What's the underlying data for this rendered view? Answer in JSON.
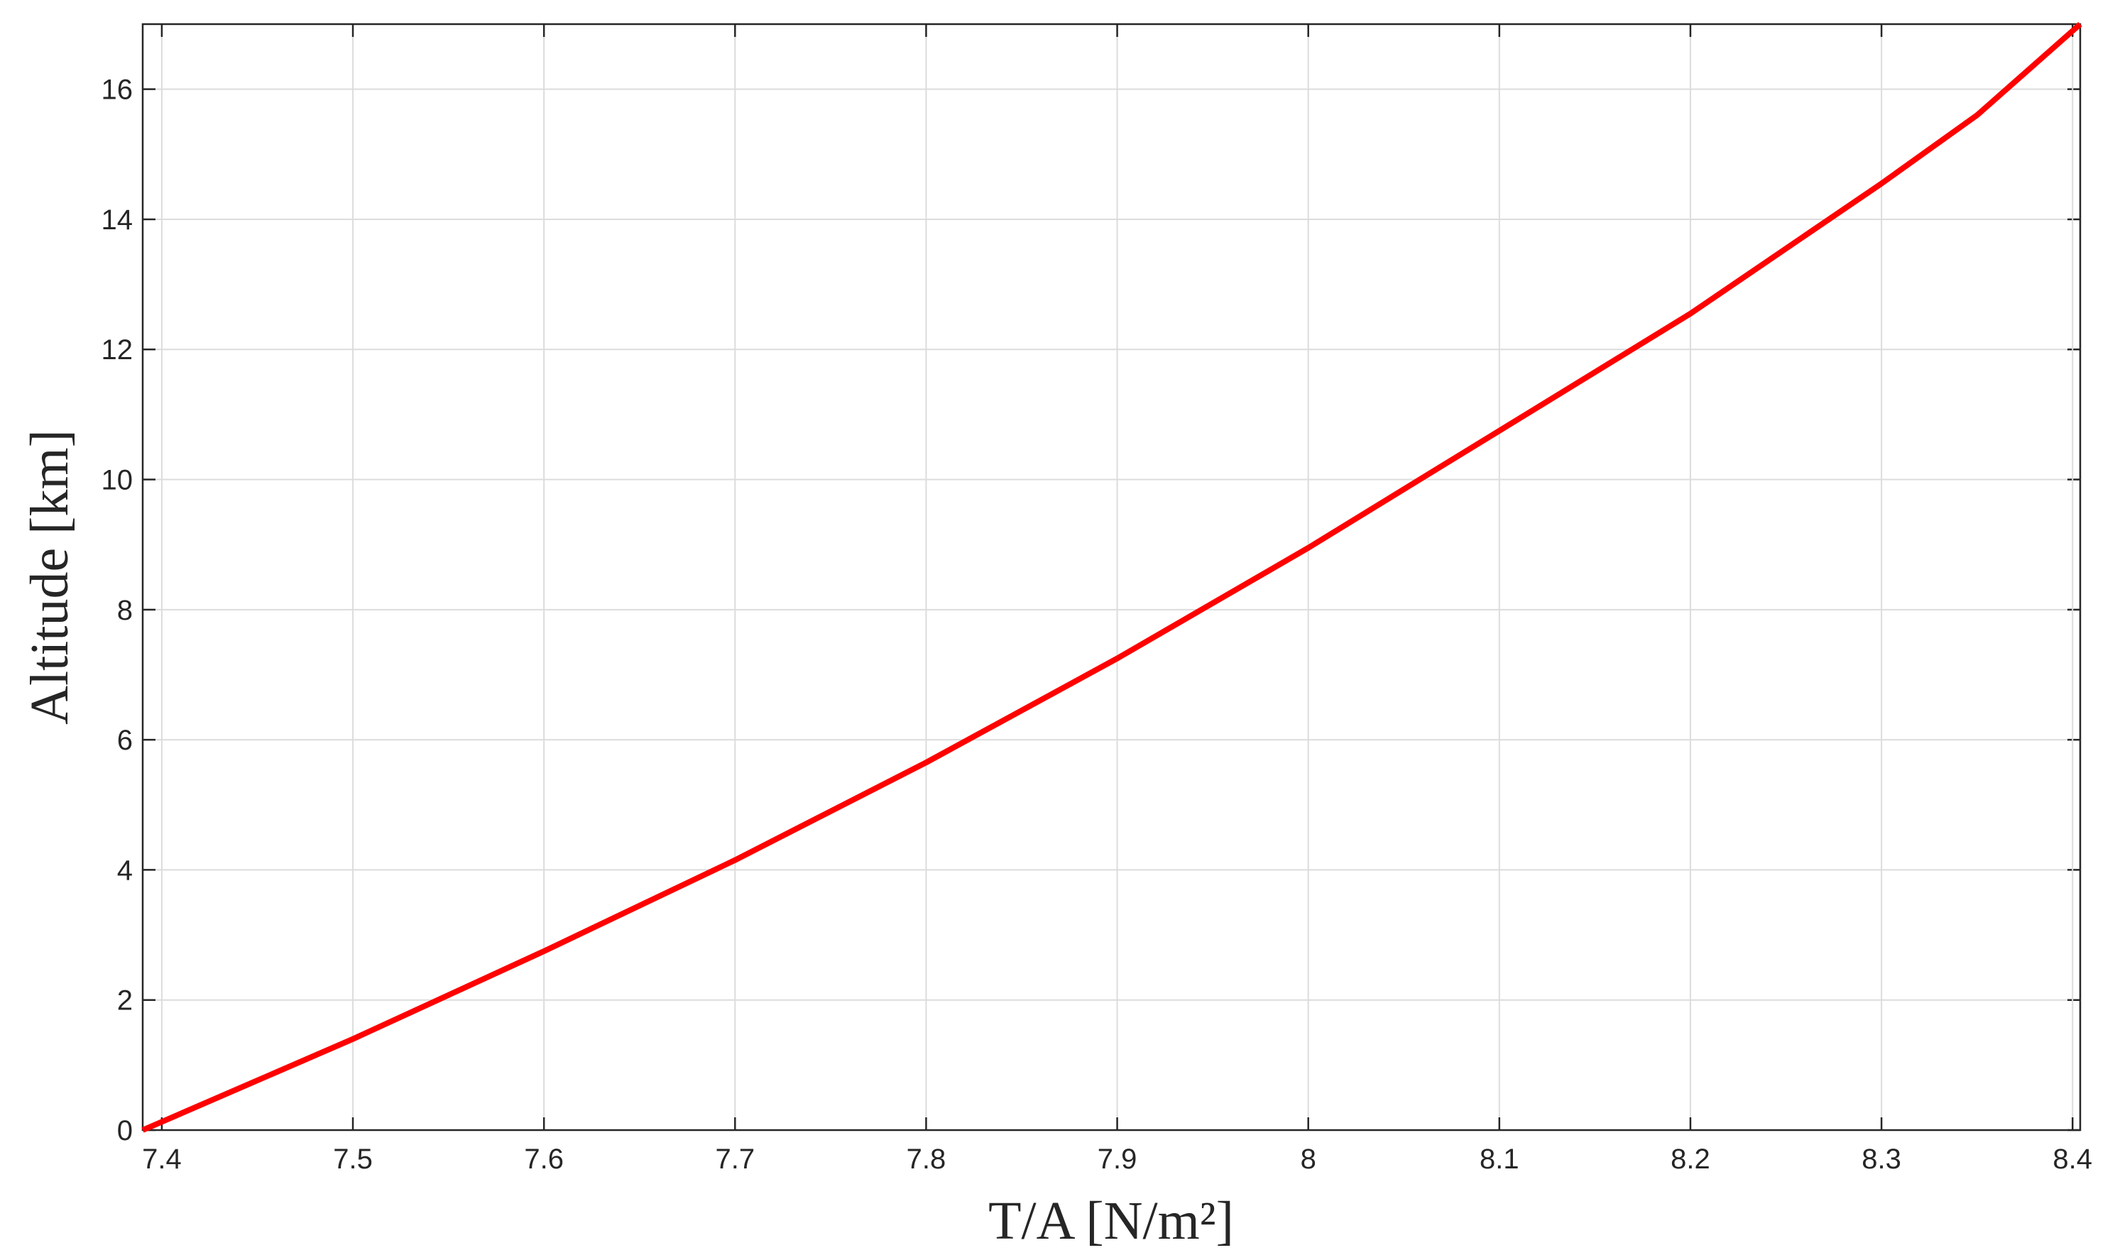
{
  "chart_data": {
    "type": "line",
    "xlabel": "T/A [N/m²]",
    "ylabel": "Altitude [km]",
    "x": [
      7.39,
      7.5,
      7.6,
      7.7,
      7.8,
      7.9,
      8.0,
      8.1,
      8.2,
      8.3,
      8.35,
      8.404
    ],
    "values": [
      0,
      1.4,
      2.75,
      4.15,
      5.65,
      7.25,
      8.95,
      10.75,
      12.55,
      14.55,
      15.6,
      17
    ],
    "color": "#ff0000",
    "xlim": [
      7.39,
      8.404
    ],
    "xticks": [
      7.4,
      7.5,
      7.6,
      7.7,
      7.8,
      7.9,
      8,
      8.1,
      8.2,
      8.3,
      8.4
    ],
    "ylim": [
      0,
      17
    ],
    "yticks": [
      0,
      2,
      4,
      6,
      8,
      10,
      12,
      14,
      16
    ],
    "grid": true
  }
}
